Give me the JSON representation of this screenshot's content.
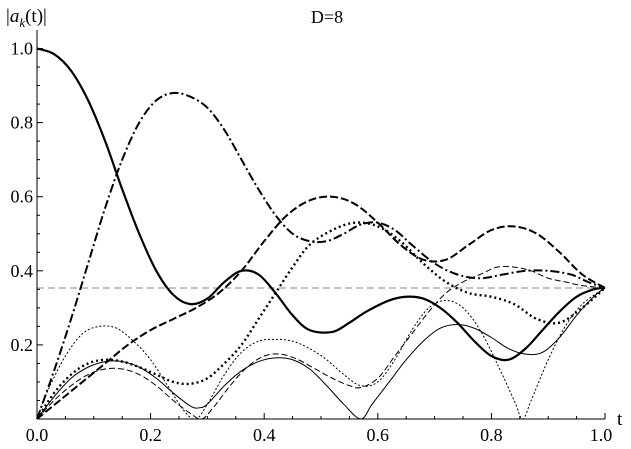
{
  "chart_data": {
    "type": "line",
    "title": "D=8",
    "xlabel": "t",
    "ylabel": "|a_k(t)|",
    "ylabel_parts": {
      "open": "|",
      "base": "a",
      "sub": "k",
      "close": "(t)|"
    },
    "xlim": [
      0,
      1
    ],
    "ylim": [
      0,
      1.05
    ],
    "xticks": [
      0.0,
      0.2,
      0.4,
      0.6,
      0.8,
      1.0
    ],
    "xtick_labels": [
      "0.0",
      "0.2",
      "0.4",
      "0.6",
      "0.8",
      "1.0"
    ],
    "yticks": [
      0.2,
      0.4,
      0.6,
      0.8,
      1.0
    ],
    "ytick_labels": [
      "0.2",
      "0.4",
      "0.6",
      "0.8",
      "1.0"
    ],
    "grid": false,
    "legend": "none",
    "reference_line": {
      "y": 0.3536,
      "style": "dashed-gray"
    },
    "series": [
      {
        "style": "solid-thick",
        "x": [
          0,
          0.03,
          0.06,
          0.09,
          0.12,
          0.15,
          0.18,
          0.21,
          0.24,
          0.27,
          0.3,
          0.33,
          0.36,
          0.39,
          0.42,
          0.45,
          0.48,
          0.52,
          0.55,
          0.58,
          0.62,
          0.65,
          0.68,
          0.71,
          0.74,
          0.77,
          0.8,
          0.83,
          0.86,
          0.89,
          0.92,
          0.95,
          0.98,
          1.0
        ],
        "y": [
          1.0,
          0.985,
          0.94,
          0.86,
          0.75,
          0.62,
          0.5,
          0.4,
          0.335,
          0.31,
          0.325,
          0.37,
          0.4,
          0.39,
          0.34,
          0.28,
          0.24,
          0.235,
          0.26,
          0.29,
          0.32,
          0.33,
          0.325,
          0.3,
          0.26,
          0.21,
          0.17,
          0.16,
          0.19,
          0.24,
          0.29,
          0.33,
          0.35,
          0.354
        ]
      },
      {
        "style": "dash-dot-thick",
        "x": [
          0,
          0.03,
          0.06,
          0.09,
          0.12,
          0.15,
          0.18,
          0.21,
          0.24,
          0.27,
          0.3,
          0.33,
          0.36,
          0.39,
          0.42,
          0.45,
          0.48,
          0.51,
          0.54,
          0.57,
          0.6,
          0.63,
          0.66,
          0.7,
          0.74,
          0.78,
          0.82,
          0.86,
          0.9,
          0.94,
          0.97,
          1.0
        ],
        "y": [
          0,
          0.13,
          0.27,
          0.42,
          0.57,
          0.7,
          0.8,
          0.86,
          0.88,
          0.87,
          0.84,
          0.78,
          0.7,
          0.62,
          0.55,
          0.5,
          0.48,
          0.48,
          0.5,
          0.525,
          0.53,
          0.51,
          0.47,
          0.42,
          0.39,
          0.38,
          0.39,
          0.4,
          0.4,
          0.39,
          0.37,
          0.354
        ]
      },
      {
        "style": "long-dash-thick",
        "x": [
          0,
          0.04,
          0.08,
          0.12,
          0.16,
          0.2,
          0.24,
          0.28,
          0.32,
          0.36,
          0.4,
          0.44,
          0.48,
          0.52,
          0.56,
          0.6,
          0.64,
          0.68,
          0.72,
          0.76,
          0.8,
          0.84,
          0.88,
          0.92,
          0.96,
          1.0
        ],
        "y": [
          0,
          0.05,
          0.1,
          0.15,
          0.2,
          0.24,
          0.27,
          0.3,
          0.34,
          0.4,
          0.48,
          0.55,
          0.59,
          0.6,
          0.58,
          0.53,
          0.47,
          0.43,
          0.43,
          0.47,
          0.51,
          0.52,
          0.5,
          0.45,
          0.39,
          0.354
        ]
      },
      {
        "style": "dotted-thick",
        "x": [
          0,
          0.03,
          0.06,
          0.09,
          0.12,
          0.15,
          0.18,
          0.21,
          0.24,
          0.27,
          0.3,
          0.33,
          0.36,
          0.39,
          0.42,
          0.45,
          0.48,
          0.52,
          0.56,
          0.6,
          0.64,
          0.68,
          0.72,
          0.76,
          0.8,
          0.84,
          0.88,
          0.92,
          0.96,
          1.0
        ],
        "y": [
          0,
          0.07,
          0.12,
          0.15,
          0.16,
          0.155,
          0.14,
          0.12,
          0.1,
          0.095,
          0.11,
          0.15,
          0.2,
          0.27,
          0.34,
          0.41,
          0.47,
          0.51,
          0.53,
          0.52,
          0.48,
          0.42,
          0.37,
          0.34,
          0.33,
          0.31,
          0.27,
          0.26,
          0.3,
          0.354
        ]
      },
      {
        "style": "solid-thin",
        "x": [
          0,
          0.03,
          0.06,
          0.09,
          0.12,
          0.15,
          0.18,
          0.21,
          0.24,
          0.27,
          0.285,
          0.3,
          0.33,
          0.36,
          0.39,
          0.42,
          0.45,
          0.48,
          0.51,
          0.54,
          0.57,
          0.59,
          0.62,
          0.65,
          0.68,
          0.71,
          0.74,
          0.77,
          0.8,
          0.83,
          0.86,
          0.89,
          0.92,
          0.95,
          0.98,
          1.0
        ],
        "y": [
          0,
          0.06,
          0.11,
          0.14,
          0.155,
          0.155,
          0.14,
          0.11,
          0.07,
          0.035,
          0.03,
          0.04,
          0.09,
          0.13,
          0.155,
          0.165,
          0.16,
          0.135,
          0.09,
          0.04,
          0.0,
          0.04,
          0.1,
          0.16,
          0.21,
          0.245,
          0.255,
          0.245,
          0.22,
          0.19,
          0.175,
          0.18,
          0.22,
          0.28,
          0.33,
          0.354
        ]
      },
      {
        "style": "dashed-thin",
        "x": [
          0,
          0.03,
          0.06,
          0.09,
          0.12,
          0.15,
          0.18,
          0.21,
          0.24,
          0.27,
          0.29,
          0.31,
          0.34,
          0.37,
          0.4,
          0.43,
          0.46,
          0.49,
          0.52,
          0.55,
          0.57,
          0.6,
          0.63,
          0.66,
          0.69,
          0.72,
          0.75,
          0.78,
          0.81,
          0.84,
          0.87,
          0.9,
          0.93,
          0.96,
          1.0
        ],
        "y": [
          0,
          0.05,
          0.09,
          0.12,
          0.135,
          0.135,
          0.12,
          0.09,
          0.05,
          0.015,
          0.0,
          0.03,
          0.09,
          0.14,
          0.17,
          0.175,
          0.16,
          0.135,
          0.11,
          0.09,
          0.085,
          0.11,
          0.17,
          0.23,
          0.29,
          0.34,
          0.37,
          0.39,
          0.41,
          0.41,
          0.4,
          0.38,
          0.37,
          0.36,
          0.354
        ]
      },
      {
        "style": "dotted-thin",
        "x": [
          0,
          0.02,
          0.05,
          0.08,
          0.11,
          0.14,
          0.17,
          0.2,
          0.23,
          0.26,
          0.28,
          0.3,
          0.33,
          0.36,
          0.39,
          0.42,
          0.45,
          0.48,
          0.51,
          0.54,
          0.57,
          0.6,
          0.63,
          0.66,
          0.69,
          0.72,
          0.75,
          0.78,
          0.81,
          0.84,
          0.855,
          0.87,
          0.9,
          0.93,
          0.96,
          1.0
        ],
        "y": [
          0,
          0.08,
          0.17,
          0.23,
          0.25,
          0.245,
          0.21,
          0.16,
          0.09,
          0.02,
          0.0,
          0.04,
          0.12,
          0.18,
          0.21,
          0.215,
          0.21,
          0.19,
          0.16,
          0.12,
          0.09,
          0.1,
          0.16,
          0.24,
          0.3,
          0.32,
          0.3,
          0.24,
          0.15,
          0.05,
          0.0,
          0.05,
          0.16,
          0.25,
          0.31,
          0.354
        ]
      }
    ]
  }
}
